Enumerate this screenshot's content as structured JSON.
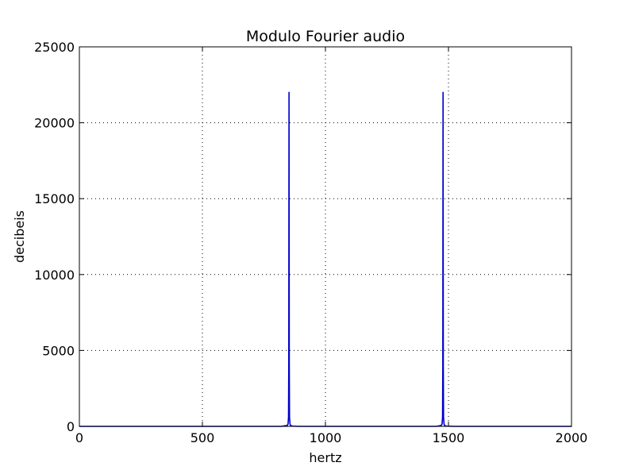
{
  "chart_data": {
    "type": "line",
    "title": "Modulo Fourier audio",
    "xlabel": "hertz",
    "ylabel": "decibeis",
    "xlim": [
      0,
      2000
    ],
    "ylim": [
      0,
      25000
    ],
    "xticks": [
      0,
      500,
      1000,
      1500,
      2000
    ],
    "xtick_labels": [
      "0",
      "500",
      "1000",
      "1500",
      "2000"
    ],
    "yticks": [
      0,
      5000,
      10000,
      15000,
      20000,
      25000
    ],
    "ytick_labels": [
      "0",
      "5000",
      "10000",
      "15000",
      "20000",
      "25000"
    ],
    "grid": true,
    "series": [
      {
        "color": "#0000cc",
        "x": [
          0,
          820,
          845,
          848,
          850,
          851,
          852,
          853,
          854,
          856,
          858,
          865,
          890,
          1450,
          1470,
          1474,
          1476,
          1477,
          1478,
          1479,
          1480,
          1482,
          1484,
          1490,
          1520,
          2000
        ],
        "y": [
          0,
          0,
          60,
          150,
          600,
          4000,
          22000,
          4000,
          600,
          150,
          60,
          20,
          0,
          0,
          60,
          150,
          600,
          4000,
          22000,
          4000,
          600,
          150,
          60,
          20,
          0,
          0
        ]
      }
    ]
  }
}
